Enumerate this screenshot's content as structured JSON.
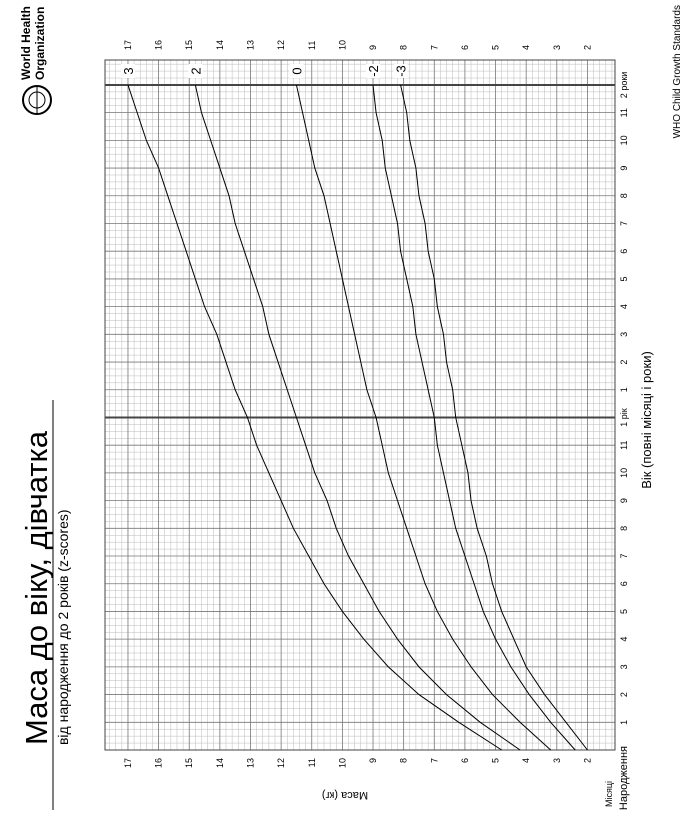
{
  "title": "Маса до віку, дівчатка",
  "subtitle": "від народження до 2 років (z-scores)",
  "org": {
    "line1": "World Health",
    "line2": "Organization"
  },
  "source": "WHO Child Growth Standards",
  "chart_data": {
    "type": "line",
    "x_label": "Вік (повні місяці і роки)",
    "x_unit_label": "Місяці",
    "y_label": "Маса (кг)",
    "x": [
      0,
      1,
      2,
      3,
      4,
      5,
      6,
      7,
      8,
      9,
      10,
      11,
      12,
      13,
      14,
      15,
      16,
      17,
      18,
      19,
      20,
      21,
      22,
      23,
      24
    ],
    "series": [
      {
        "name": "3",
        "color": "#000000",
        "values": [
          4.8,
          6.2,
          7.5,
          8.5,
          9.3,
          10.0,
          10.6,
          11.1,
          11.6,
          12.0,
          12.4,
          12.8,
          13.1,
          13.5,
          13.8,
          14.1,
          14.5,
          14.8,
          15.1,
          15.4,
          15.7,
          16.0,
          16.4,
          16.7,
          17.0
        ]
      },
      {
        "name": "2",
        "color": "#000000",
        "values": [
          4.2,
          5.5,
          6.6,
          7.5,
          8.2,
          8.8,
          9.3,
          9.8,
          10.2,
          10.5,
          10.9,
          11.2,
          11.5,
          11.8,
          12.1,
          12.4,
          12.6,
          12.9,
          13.2,
          13.5,
          13.7,
          14.0,
          14.3,
          14.6,
          14.8
        ]
      },
      {
        "name": "0",
        "color": "#000000",
        "values": [
          3.2,
          4.2,
          5.1,
          5.8,
          6.4,
          6.9,
          7.3,
          7.6,
          7.9,
          8.2,
          8.5,
          8.7,
          8.9,
          9.2,
          9.4,
          9.6,
          9.8,
          10.0,
          10.2,
          10.4,
          10.6,
          10.9,
          11.1,
          11.3,
          11.5
        ]
      },
      {
        "name": "-2",
        "color": "#000000",
        "values": [
          2.4,
          3.2,
          3.9,
          4.5,
          5.0,
          5.4,
          5.7,
          6.0,
          6.3,
          6.5,
          6.7,
          6.9,
          7.0,
          7.2,
          7.4,
          7.6,
          7.7,
          7.9,
          8.1,
          8.2,
          8.4,
          8.6,
          8.7,
          8.9,
          9.0
        ]
      },
      {
        "name": "-3",
        "color": "#000000",
        "values": [
          2.0,
          2.7,
          3.4,
          4.0,
          4.4,
          4.8,
          5.1,
          5.3,
          5.6,
          5.8,
          5.9,
          6.1,
          6.3,
          6.4,
          6.6,
          6.7,
          6.9,
          7.0,
          7.2,
          7.3,
          7.5,
          7.6,
          7.8,
          7.9,
          8.1
        ]
      }
    ],
    "xlim": [
      0,
      24.9
    ],
    "xticks": [
      {
        "value": 0,
        "label": "Народження"
      },
      1,
      2,
      3,
      4,
      5,
      6,
      7,
      8,
      9,
      10,
      11,
      {
        "value": 12,
        "label": "1 рік"
      },
      {
        "value": 13,
        "label": "1"
      },
      {
        "value": 14,
        "label": "2"
      },
      {
        "value": 15,
        "label": "3"
      },
      {
        "value": 16,
        "label": "4"
      },
      {
        "value": 17,
        "label": "5"
      },
      {
        "value": 18,
        "label": "6"
      },
      {
        "value": 19,
        "label": "7"
      },
      {
        "value": 20,
        "label": "8"
      },
      {
        "value": 21,
        "label": "9"
      },
      {
        "value": 22,
        "label": "10"
      },
      {
        "value": 23,
        "label": "11"
      },
      {
        "value": 24,
        "label": "2 роки"
      }
    ],
    "ylim": [
      1.1,
      17.75
    ],
    "yticks": [
      2,
      3,
      4,
      5,
      6,
      7,
      8,
      9,
      10,
      11,
      12,
      13,
      14,
      15,
      16,
      17
    ],
    "grid": true
  }
}
